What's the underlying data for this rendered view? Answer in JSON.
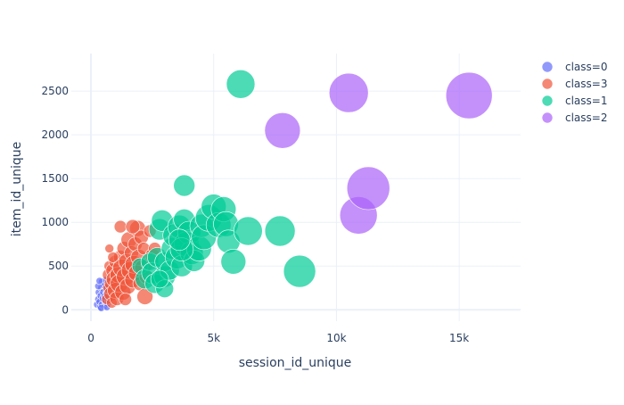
{
  "chart_data": {
    "type": "scatter",
    "title": "",
    "xlabel": "session_id_unique",
    "ylabel": "item_id_unique",
    "xlim": [
      -800,
      17500
    ],
    "ylim": [
      -130,
      2930
    ],
    "xticks": [
      {
        "v": 0,
        "label": "0"
      },
      {
        "v": 5000,
        "label": "5k"
      },
      {
        "v": 10000,
        "label": "10k"
      },
      {
        "v": 15000,
        "label": "15k"
      }
    ],
    "yticks": [
      {
        "v": 0,
        "label": "0"
      },
      {
        "v": 500,
        "label": "500"
      },
      {
        "v": 1000,
        "label": "1000"
      },
      {
        "v": 1500,
        "label": "1500"
      },
      {
        "v": 2000,
        "label": "2000"
      },
      {
        "v": 2500,
        "label": "2500"
      }
    ],
    "grid": true,
    "legend_position": "right",
    "series": [
      {
        "name": "class=0",
        "color": "#636efa",
        "points": [
          [
            250,
            60,
            4
          ],
          [
            300,
            120,
            4
          ],
          [
            320,
            200,
            4
          ],
          [
            350,
            90,
            4
          ],
          [
            380,
            30,
            4
          ],
          [
            400,
            160,
            4
          ],
          [
            420,
            250,
            4
          ],
          [
            450,
            320,
            4
          ],
          [
            450,
            60,
            4
          ],
          [
            480,
            130,
            4
          ],
          [
            500,
            200,
            4
          ],
          [
            520,
            280,
            4
          ],
          [
            550,
            40,
            4
          ],
          [
            580,
            100,
            4
          ],
          [
            600,
            340,
            4
          ],
          [
            620,
            180,
            4
          ],
          [
            650,
            250,
            4
          ],
          [
            680,
            70,
            4
          ],
          [
            700,
            120,
            4
          ],
          [
            300,
            270,
            4
          ],
          [
            350,
            330,
            4
          ],
          [
            420,
            20,
            4
          ],
          [
            550,
            150,
            4
          ],
          [
            650,
            30,
            4
          ]
        ]
      },
      {
        "name": "class=3",
        "color": "#ef553b",
        "points": [
          [
            650,
            120,
            6
          ],
          [
            700,
            250,
            6
          ],
          [
            720,
            400,
            7
          ],
          [
            750,
            500,
            6
          ],
          [
            800,
            300,
            7
          ],
          [
            820,
            180,
            8
          ],
          [
            850,
            80,
            6
          ],
          [
            900,
            450,
            8
          ],
          [
            950,
            350,
            9
          ],
          [
            980,
            550,
            7
          ],
          [
            1000,
            220,
            9
          ],
          [
            1050,
            130,
            8
          ],
          [
            1100,
            400,
            9
          ],
          [
            1150,
            300,
            10
          ],
          [
            1200,
            600,
            8
          ],
          [
            1250,
            480,
            10
          ],
          [
            1300,
            200,
            9
          ],
          [
            1350,
            700,
            8
          ],
          [
            1400,
            380,
            10
          ],
          [
            1450,
            550,
            9
          ],
          [
            1500,
            270,
            9
          ],
          [
            1550,
            800,
            9
          ],
          [
            1600,
            450,
            10
          ],
          [
            1650,
            650,
            8
          ],
          [
            1700,
            340,
            9
          ],
          [
            1750,
            520,
            10
          ],
          [
            1800,
            750,
            8
          ],
          [
            1850,
            420,
            9
          ],
          [
            1900,
            930,
            9
          ],
          [
            1950,
            600,
            9
          ],
          [
            2000,
            300,
            8
          ],
          [
            2050,
            830,
            8
          ],
          [
            2100,
            480,
            9
          ],
          [
            2150,
            700,
            7
          ],
          [
            2200,
            150,
            9
          ],
          [
            2250,
            380,
            8
          ],
          [
            2300,
            520,
            7
          ],
          [
            2400,
            900,
            7
          ],
          [
            2500,
            620,
            8
          ],
          [
            2600,
            700,
            7
          ],
          [
            900,
            600,
            6
          ],
          [
            750,
            700,
            5
          ],
          [
            1200,
            950,
            7
          ],
          [
            1700,
            950,
            8
          ],
          [
            1400,
            120,
            7
          ]
        ]
      },
      {
        "name": "class=1",
        "color": "#00cc96",
        "points": [
          [
            2000,
            500,
            9
          ],
          [
            2200,
            350,
            11
          ],
          [
            2400,
            550,
            10
          ],
          [
            2500,
            420,
            12
          ],
          [
            2600,
            300,
            11
          ],
          [
            2700,
            600,
            11
          ],
          [
            2800,
            920,
            12
          ],
          [
            2900,
            1020,
            12
          ],
          [
            3000,
            380,
            12
          ],
          [
            3000,
            550,
            11
          ],
          [
            3000,
            240,
            10
          ],
          [
            3200,
            450,
            11
          ],
          [
            3300,
            700,
            12
          ],
          [
            3400,
            850,
            13
          ],
          [
            3500,
            600,
            13
          ],
          [
            3600,
            950,
            13
          ],
          [
            3700,
            500,
            12
          ],
          [
            3800,
            1030,
            12
          ],
          [
            3800,
            1420,
            12
          ],
          [
            3900,
            750,
            14
          ],
          [
            4000,
            880,
            13
          ],
          [
            4100,
            650,
            13
          ],
          [
            4200,
            560,
            12
          ],
          [
            4400,
            700,
            14
          ],
          [
            4500,
            960,
            13
          ],
          [
            4600,
            830,
            14
          ],
          [
            4800,
            1050,
            15
          ],
          [
            5000,
            1180,
            14
          ],
          [
            5200,
            970,
            14
          ],
          [
            5400,
            1150,
            14
          ],
          [
            5500,
            980,
            14
          ],
          [
            5600,
            780,
            13
          ],
          [
            5800,
            550,
            14
          ],
          [
            6100,
            2580,
            16
          ],
          [
            6400,
            900,
            16
          ],
          [
            7700,
            900,
            17
          ],
          [
            8500,
            440,
            18
          ],
          [
            3700,
            690,
            13
          ],
          [
            3600,
            800,
            12
          ],
          [
            2800,
            350,
            10
          ]
        ]
      },
      {
        "name": "class=2",
        "color": "#ab63fa",
        "points": [
          [
            7800,
            2050,
            20
          ],
          [
            10500,
            2480,
            22
          ],
          [
            10900,
            1080,
            21
          ],
          [
            11300,
            1390,
            24
          ],
          [
            15400,
            2450,
            26
          ]
        ]
      }
    ]
  }
}
